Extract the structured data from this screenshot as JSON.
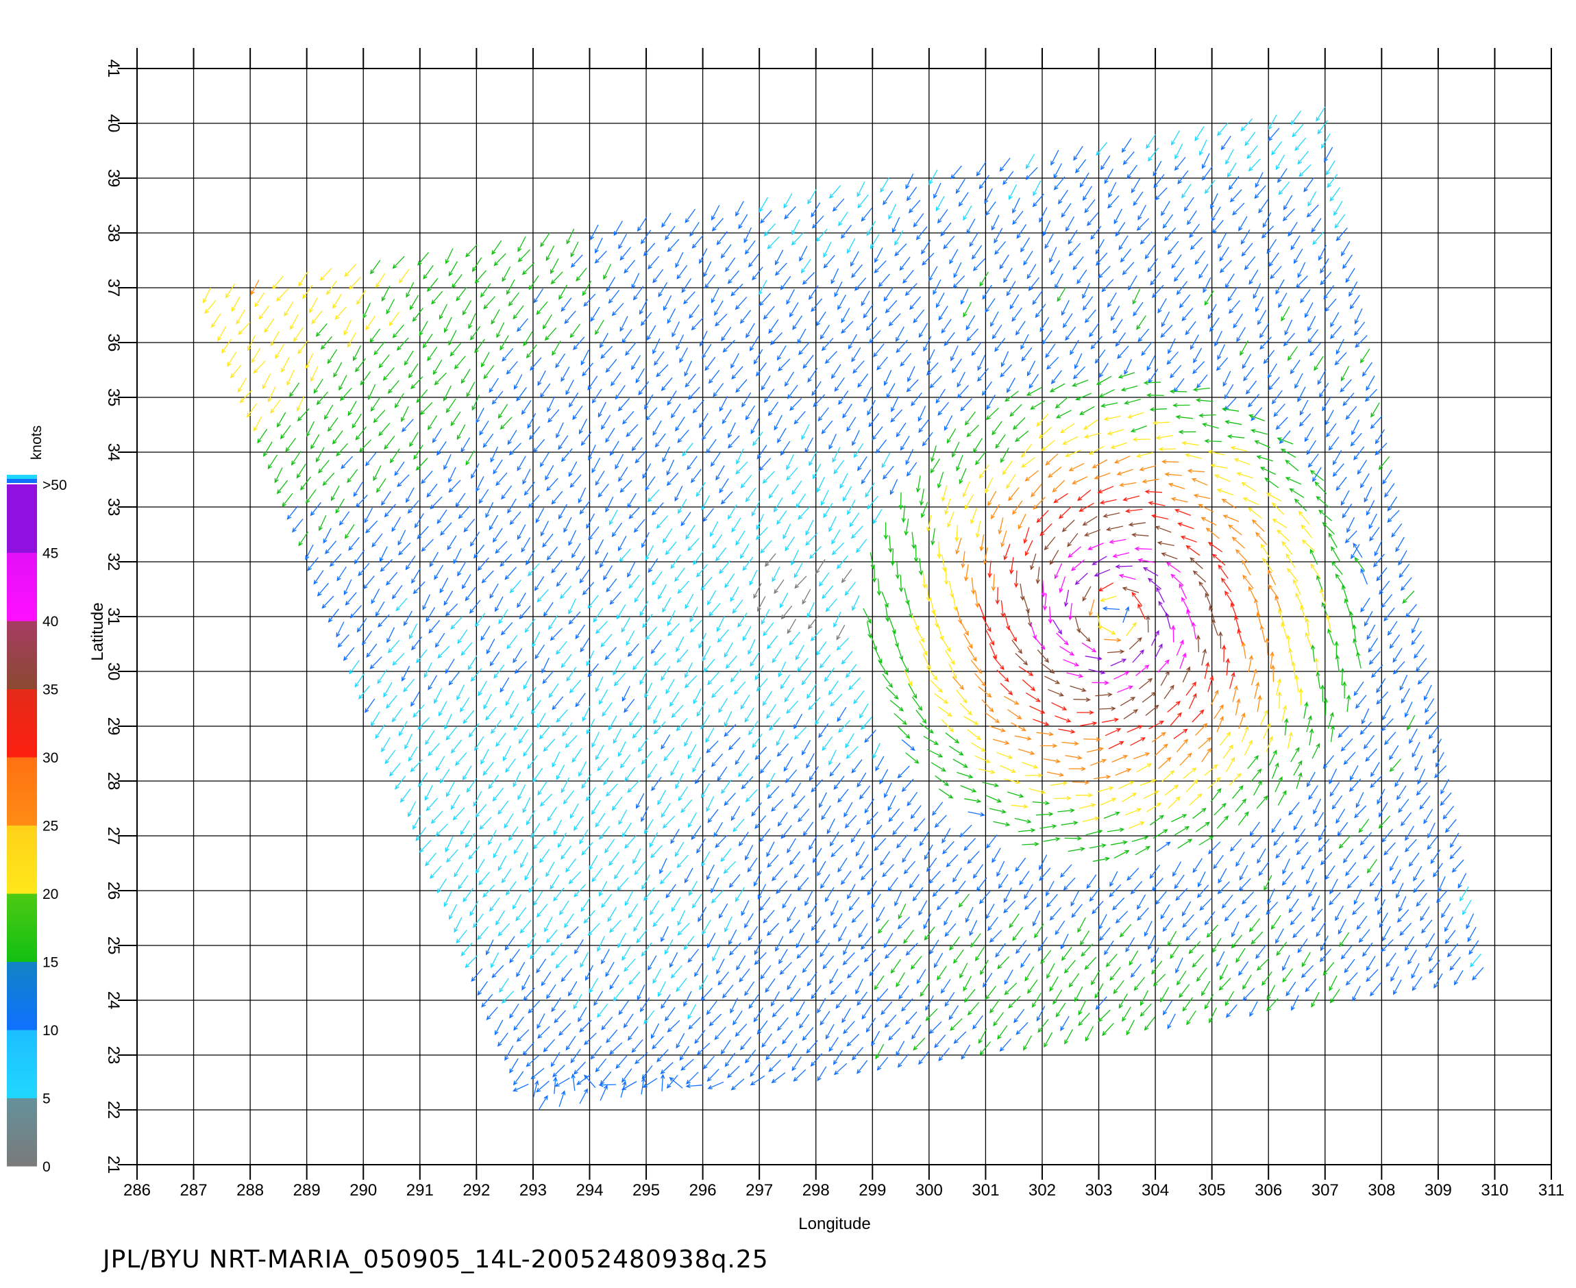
{
  "caption": "JPL/BYU  NRT-MARIA_050905_14L-20052480938q.25",
  "chart_data": {
    "type": "vector-field",
    "xlabel": "Longitude",
    "ylabel": "Latitude",
    "xlim": [
      286,
      311
    ],
    "ylim": [
      21,
      41
    ],
    "x_ticks": [
      286,
      287,
      288,
      289,
      290,
      291,
      292,
      293,
      294,
      295,
      296,
      297,
      298,
      299,
      300,
      301,
      302,
      303,
      304,
      305,
      306,
      307,
      308,
      309,
      310,
      311
    ],
    "y_ticks": [
      21,
      22,
      23,
      24,
      25,
      26,
      27,
      28,
      29,
      30,
      31,
      32,
      33,
      34,
      35,
      36,
      37,
      38,
      39,
      40,
      41
    ],
    "grid": true,
    "swath_corners": [
      [
        287.3,
        37.0
      ],
      [
        307.0,
        40.3
      ],
      [
        309.8,
        24.6
      ],
      [
        293.1,
        22.0
      ]
    ],
    "storm_center": [
      303.3,
      31.0
    ],
    "colorbar": {
      "title": "knots",
      "bins": [
        {
          "min": 0,
          "max": 5,
          "color": "#7a7a7a"
        },
        {
          "min": 5,
          "max": 10,
          "color": "#20d8ff"
        },
        {
          "min": 10,
          "max": 15,
          "color": "#1070ff"
        },
        {
          "min": 15,
          "max": 20,
          "color": "#12c012"
        },
        {
          "min": 20,
          "max": 25,
          "color": "#ffe81a"
        },
        {
          "min": 25,
          "max": 30,
          "color": "#ff8c14"
        },
        {
          "min": 30,
          "max": 35,
          "color": "#ff2010"
        },
        {
          "min": 35,
          "max": 40,
          "color": "#8a4a30"
        },
        {
          "min": 40,
          "max": 45,
          "color": "#ff10ff"
        },
        {
          "min": 45,
          "max": 50,
          "color": "#9010e0"
        }
      ],
      "tick_labels": [
        "0",
        "5",
        "10",
        "15",
        "20",
        "25",
        "30",
        "35",
        "40",
        "45",
        ">50"
      ]
    }
  }
}
